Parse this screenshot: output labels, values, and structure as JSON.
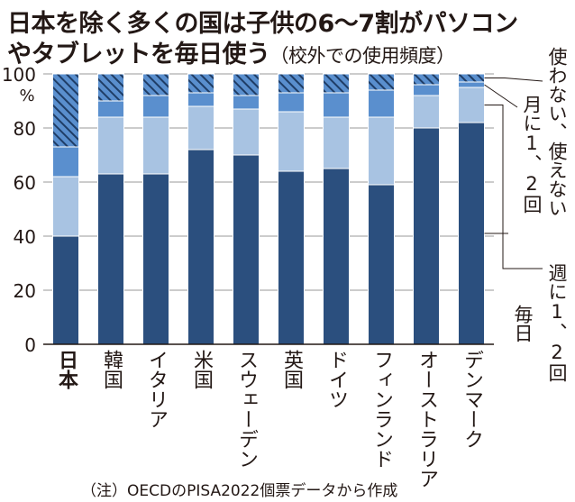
{
  "title": {
    "line1": "日本を除く多くの国は子供の6～7割がパソコン",
    "line2": "やタブレットを毎日使う",
    "subtitle": "（校外での使用頻度）"
  },
  "note": "（注）OECDのPISA2022個票データから作成",
  "chart_data": {
    "type": "bar",
    "stacked": true,
    "categories": [
      "日本",
      "韓国",
      "イタリア",
      "米国",
      "スウェーデン",
      "英国",
      "ドイツ",
      "フィンランド",
      "オーストラリア",
      "デンマーク"
    ],
    "ylim": [
      0,
      100
    ],
    "yticks": [
      0,
      20,
      40,
      60,
      80,
      100
    ],
    "ylabel": "%",
    "series": [
      {
        "name": "毎日",
        "color": "#2b4f7e",
        "values": [
          40,
          63,
          63,
          72,
          70,
          64,
          65,
          59,
          80,
          82
        ]
      },
      {
        "name": "週に1、2回",
        "color": "#a8c3e2",
        "values": [
          22,
          21,
          21,
          16,
          17,
          22,
          19,
          25,
          12,
          13
        ]
      },
      {
        "name": "月に1、2回",
        "color": "#5a8fce",
        "values": [
          11,
          6,
          8,
          5,
          5,
          7,
          9,
          10,
          4,
          2
        ]
      },
      {
        "name": "使わない、使えない",
        "color": "#2b4f7e",
        "pattern": "hatch",
        "values": [
          27,
          10,
          8,
          7,
          8,
          7,
          7,
          6,
          4,
          3
        ]
      }
    ]
  }
}
